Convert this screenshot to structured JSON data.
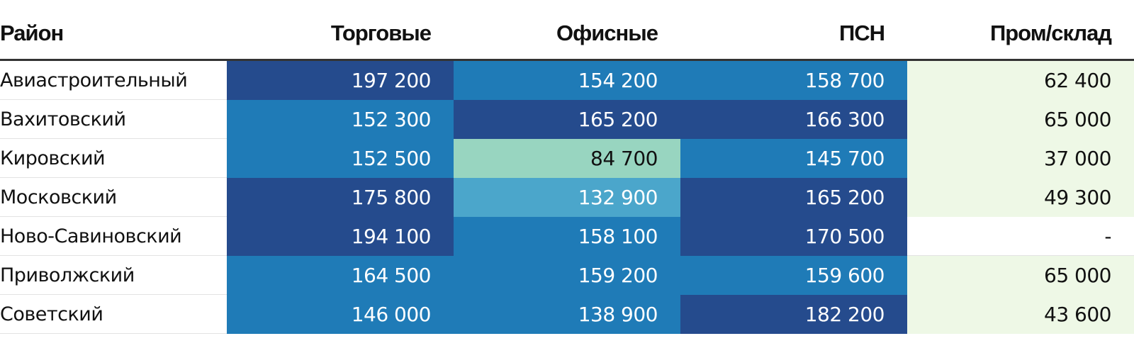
{
  "chart_data": {
    "type": "table",
    "columns": [
      "Район",
      "Торговые",
      "Офисные",
      "ПСН",
      "Пром/склад"
    ],
    "rows": [
      {
        "district": "Авиастроительный",
        "values": [
          "197 200",
          "154 200",
          "158 700",
          "62 400"
        ]
      },
      {
        "district": "Вахитовский",
        "values": [
          "152 300",
          "165 200",
          "166 300",
          "65 000"
        ]
      },
      {
        "district": "Кировский",
        "values": [
          "152 500",
          "84 700",
          "145 700",
          "37 000"
        ]
      },
      {
        "district": "Московский",
        "values": [
          "175 800",
          "132 900",
          "165 200",
          "49 300"
        ]
      },
      {
        "district": "Ново-Савиновский",
        "values": [
          "194 100",
          "158 100",
          "170 500",
          "-"
        ]
      },
      {
        "district": "Приволжский",
        "values": [
          "164 500",
          "159 200",
          "159 600",
          "65 000"
        ]
      },
      {
        "district": "Советский",
        "values": [
          "146 000",
          "138 900",
          "182 200",
          "43 600"
        ]
      }
    ],
    "heat_colors": {
      "dark": "#254b8d",
      "mid": "#1f7bb7",
      "light_blue": "#4ba6cb",
      "mint": "#98d5c0",
      "pale_green": "#eef8e6",
      "white": "#ffffff"
    },
    "cell_shades": [
      [
        "dark",
        "mid",
        "mid",
        "pale_green"
      ],
      [
        "mid",
        "dark",
        "dark",
        "pale_green"
      ],
      [
        "mid",
        "mint",
        "mid",
        "pale_green"
      ],
      [
        "dark",
        "light_blue",
        "dark",
        "pale_green"
      ],
      [
        "dark",
        "mid",
        "dark",
        "white"
      ],
      [
        "mid",
        "mid",
        "mid",
        "pale_green"
      ],
      [
        "mid",
        "mid",
        "dark",
        "pale_green"
      ]
    ]
  }
}
